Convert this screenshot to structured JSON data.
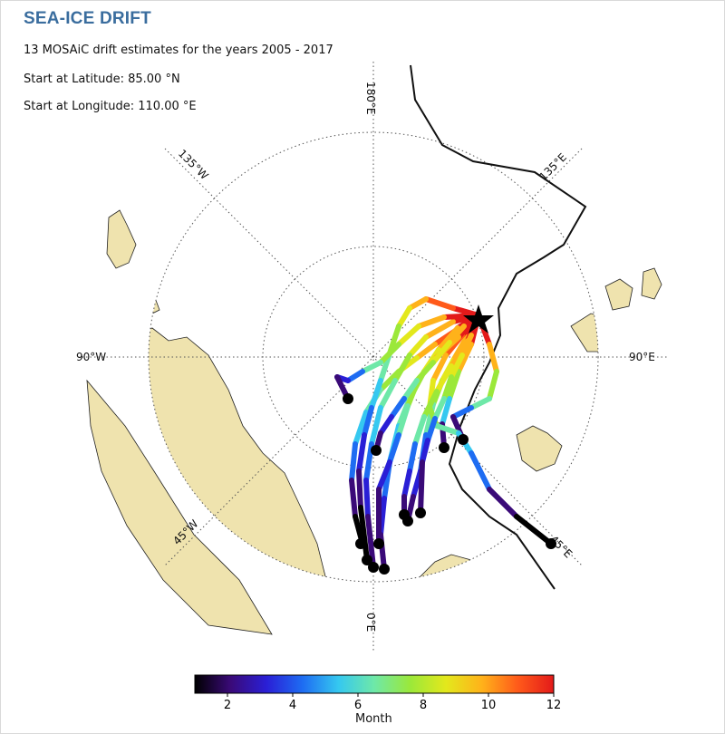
{
  "header": {
    "title": "SEA-ICE DRIFT",
    "summary": "13 MOSAiC drift estimates for the years 2005 - 2017",
    "start_lat": "Start at Latitude: 85.00 °N",
    "start_lon": "Start at Longitude: 110.00 °E"
  },
  "map": {
    "meridian_labels": [
      "180°E",
      "135°E",
      "90°E",
      "45°E",
      "0°E",
      "45°W",
      "90°W",
      "135°W"
    ],
    "land_color": "#efe3ae",
    "start_marker": "star-icon",
    "end_marker_color": "#000000"
  },
  "colorbar": {
    "label": "Month",
    "ticks": [
      "2",
      "4",
      "6",
      "8",
      "10",
      "12"
    ],
    "colors": [
      "#000000",
      "#3a0a78",
      "#2a1fd6",
      "#1e6cf2",
      "#35c8f0",
      "#6ee8a8",
      "#9be83a",
      "#e3e81c",
      "#ffb21a",
      "#ff5a1a",
      "#e31a1a"
    ]
  }
}
